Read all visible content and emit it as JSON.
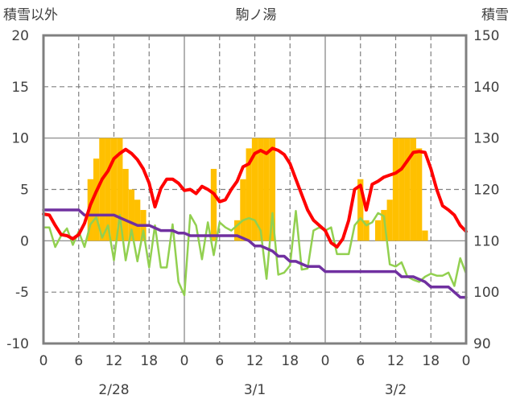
{
  "chart_data": {
    "type": "bar+line",
    "title": "駒ノ湯",
    "left_axis_label": "積雪以外",
    "right_axis_label": "積雪",
    "left_ylim": [
      -10,
      20
    ],
    "left_ticks": [
      -10,
      -5,
      0,
      5,
      10,
      15,
      20
    ],
    "right_ylim": [
      90,
      150
    ],
    "right_ticks": [
      90,
      100,
      110,
      120,
      130,
      140,
      150
    ],
    "x_range_hours": [
      0,
      72
    ],
    "x_tick_labels": [
      "0",
      "6",
      "12",
      "18",
      "0",
      "6",
      "12",
      "18",
      "0",
      "6",
      "12",
      "18",
      "0"
    ],
    "date_labels": [
      {
        "hour": 12,
        "label": "2/28"
      },
      {
        "hour": 36,
        "label": "3/1"
      },
      {
        "hour": 60,
        "label": "3/2"
      }
    ],
    "colors": {
      "bars": "#FFC000",
      "red_line": "#FF0000",
      "green_line": "#92D050",
      "purple_line": "#7030A0",
      "frame": "#808080",
      "grid": "#808080"
    },
    "bars": {
      "hours": [
        8,
        9,
        10,
        11,
        12,
        13,
        14,
        15,
        16,
        17,
        29,
        33,
        34,
        35,
        36,
        37,
        38,
        39,
        54,
        55,
        57,
        58,
        59,
        60,
        61,
        62,
        63,
        64,
        65
      ],
      "values": [
        6,
        8,
        10,
        10,
        10,
        10,
        7,
        5,
        4,
        3,
        7,
        2,
        6,
        9,
        10,
        10,
        10,
        10,
        6,
        2,
        2,
        3,
        4,
        10,
        10,
        10,
        10,
        9,
        1
      ]
    },
    "red_series": {
      "hours": [
        0,
        1,
        2,
        3,
        4,
        5,
        6,
        7,
        8,
        9,
        10,
        11,
        12,
        13,
        14,
        15,
        16,
        17,
        18,
        19,
        20,
        21,
        22,
        23,
        24,
        25,
        26,
        27,
        28,
        29,
        30,
        31,
        32,
        33,
        34,
        35,
        36,
        37,
        38,
        39,
        40,
        41,
        42,
        43,
        44,
        45,
        46,
        47,
        48,
        49,
        50,
        51,
        52,
        53,
        54,
        55,
        56,
        57,
        58,
        59,
        60,
        61,
        62,
        63,
        64,
        65,
        66,
        67,
        68,
        69,
        70,
        71,
        72
      ],
      "values": [
        2.6,
        2.5,
        1.5,
        0.6,
        0.5,
        0.2,
        0.6,
        1.7,
        3.5,
        4.8,
        6.0,
        6.8,
        8.0,
        8.5,
        8.9,
        8.5,
        7.9,
        7.0,
        5.6,
        3.3,
        5.1,
        6.0,
        6.0,
        5.6,
        4.9,
        5.0,
        4.6,
        5.3,
        5.0,
        4.6,
        3.8,
        4.0,
        5.0,
        5.8,
        7.2,
        7.5,
        8.5,
        8.8,
        8.5,
        9.0,
        8.8,
        8.4,
        7.5,
        6.0,
        4.5,
        3.0,
        2.0,
        1.5,
        1.0,
        -0.2,
        -0.6,
        0.2,
        2.0,
        5.0,
        5.4,
        3.0,
        5.5,
        5.8,
        6.2,
        6.4,
        6.6,
        7.0,
        7.8,
        8.6,
        8.7,
        8.6,
        7.0,
        5.0,
        3.4,
        3.0,
        2.5,
        1.5,
        0.9
      ]
    },
    "green_series": {
      "hours": [
        0,
        1,
        2,
        3,
        4,
        5,
        6,
        7,
        8,
        9,
        10,
        11,
        12,
        13,
        14,
        15,
        16,
        17,
        18,
        19,
        20,
        21,
        22,
        23,
        24,
        25,
        26,
        27,
        28,
        29,
        30,
        31,
        32,
        33,
        34,
        35,
        36,
        37,
        38,
        39,
        40,
        41,
        42,
        43,
        44,
        45,
        46,
        47,
        48,
        49,
        50,
        51,
        52,
        53,
        54,
        55,
        56,
        57,
        58,
        59,
        60,
        61,
        62,
        63,
        64,
        65,
        66,
        67,
        68,
        69,
        70,
        71,
        72
      ],
      "values": [
        1.3,
        1.3,
        -0.6,
        0.5,
        1.2,
        -0.4,
        0.9,
        -0.6,
        1.6,
        2.3,
        0.3,
        1.5,
        -1.9,
        2.5,
        -1.9,
        1.1,
        -2.0,
        1.0,
        -2.6,
        1.5,
        -2.6,
        -2.6,
        1.6,
        -4.0,
        -5.3,
        2.5,
        1.5,
        -1.8,
        1.8,
        -1.4,
        1.8,
        1.3,
        1.0,
        1.5,
        2.0,
        2.2,
        2.0,
        1.0,
        -3.7,
        2.7,
        -3.3,
        -3.1,
        -2.4,
        2.9,
        -2.8,
        -2.7,
        1.0,
        1.3,
        1.0,
        1.3,
        -1.3,
        -1.3,
        -1.3,
        1.5,
        2.2,
        1.5,
        1.8,
        2.7,
        2.4,
        -2.3,
        -2.5,
        -2.1,
        -3.5,
        -3.8,
        -4.0,
        -3.5,
        -3.2,
        -3.4,
        -3.4,
        -3.1,
        -4.4,
        -1.7,
        -3.2
      ]
    },
    "purple_series": {
      "hours": [
        0,
        1,
        2,
        3,
        4,
        5,
        6,
        7,
        8,
        9,
        10,
        11,
        12,
        13,
        14,
        15,
        16,
        17,
        18,
        19,
        20,
        21,
        22,
        23,
        24,
        25,
        26,
        27,
        28,
        29,
        30,
        31,
        32,
        33,
        34,
        35,
        36,
        37,
        38,
        39,
        40,
        41,
        42,
        43,
        44,
        45,
        46,
        47,
        48,
        49,
        50,
        51,
        52,
        53,
        54,
        55,
        56,
        57,
        58,
        59,
        60,
        61,
        62,
        63,
        64,
        65,
        66,
        67,
        68,
        69,
        70,
        71,
        72
      ],
      "values": [
        116,
        116,
        116,
        116,
        116,
        116,
        116,
        115,
        115,
        115,
        115,
        115,
        115,
        114.5,
        114,
        113.5,
        113,
        113,
        113,
        112.5,
        112,
        112,
        112,
        111.5,
        111.5,
        111,
        111,
        111,
        111,
        111,
        111,
        111,
        111,
        111,
        110.5,
        110,
        109,
        109,
        108.5,
        108,
        107,
        107,
        106,
        106,
        105.5,
        105,
        105,
        105,
        104,
        104,
        104,
        104,
        104,
        104,
        104,
        104,
        104,
        104,
        104,
        104,
        104,
        103,
        103,
        103,
        102.5,
        102,
        101,
        101,
        101,
        101,
        100,
        99,
        99
      ]
    }
  }
}
